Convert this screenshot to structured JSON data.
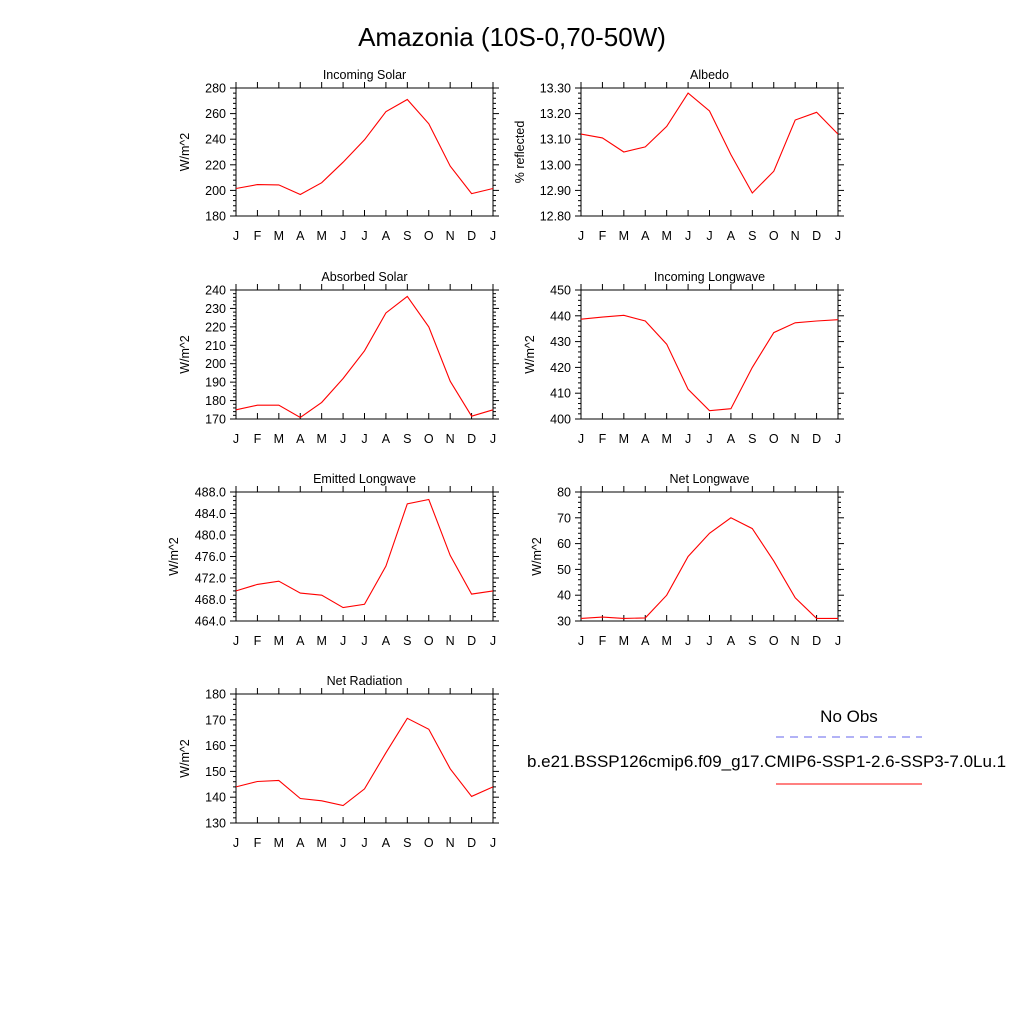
{
  "figure_title": "Amazonia (10S-0,70-50W)",
  "legend": {
    "obs_label": "No Obs",
    "model_label": "b.e21.BSSP126cmip6.f09_g17.CMIP6-SSP1-2.6-SSP3-7.0Lu.1",
    "obs_color": "#6666ee",
    "model_color": "#ff0000"
  },
  "chart_data": [
    {
      "type": "line",
      "title": "Incoming Solar",
      "ylabel": "W/m^2",
      "x": [
        "J",
        "F",
        "M",
        "A",
        "M",
        "J",
        "J",
        "A",
        "S",
        "O",
        "N",
        "D",
        "J"
      ],
      "ylim": [
        180,
        280
      ],
      "yticks": [
        180,
        200,
        220,
        240,
        260,
        280
      ],
      "ytick_labels": [
        "180",
        "200",
        "220",
        "240",
        "260",
        "280"
      ],
      "series": [
        {
          "values": [
            201.5,
            204.5,
            204.3,
            196.8,
            206,
            222,
            239.5,
            261.5,
            271,
            252,
            219,
            197.5,
            201.5
          ]
        }
      ]
    },
    {
      "type": "line",
      "title": "Albedo",
      "ylabel": "% reflected",
      "x": [
        "J",
        "F",
        "M",
        "A",
        "M",
        "J",
        "J",
        "A",
        "S",
        "O",
        "N",
        "D",
        "J"
      ],
      "ylim": [
        12.8,
        13.3
      ],
      "yticks": [
        12.8,
        12.9,
        13.0,
        13.1,
        13.2,
        13.3
      ],
      "ytick_labels": [
        "12.80",
        "12.90",
        "13.00",
        "13.10",
        "13.20",
        "13.30"
      ],
      "series": [
        {
          "values": [
            13.12,
            13.105,
            13.05,
            13.07,
            13.15,
            13.28,
            13.21,
            13.04,
            12.89,
            12.975,
            13.175,
            13.205,
            13.12
          ]
        }
      ]
    },
    {
      "type": "line",
      "title": "Absorbed Solar",
      "ylabel": "W/m^2",
      "x": [
        "J",
        "F",
        "M",
        "A",
        "M",
        "J",
        "J",
        "A",
        "S",
        "O",
        "N",
        "D",
        "J"
      ],
      "ylim": [
        170,
        240
      ],
      "yticks": [
        170,
        180,
        190,
        200,
        210,
        220,
        230,
        240
      ],
      "ytick_labels": [
        "170",
        "180",
        "190",
        "200",
        "210",
        "220",
        "230",
        "240"
      ],
      "series": [
        {
          "values": [
            175,
            177.5,
            177.5,
            170.8,
            179,
            192,
            207,
            227.5,
            236.5,
            220,
            190.5,
            171.5,
            175
          ]
        }
      ]
    },
    {
      "type": "line",
      "title": "Incoming Longwave",
      "ylabel": "W/m^2",
      "x": [
        "J",
        "F",
        "M",
        "A",
        "M",
        "J",
        "J",
        "A",
        "S",
        "O",
        "N",
        "D",
        "J"
      ],
      "ylim": [
        400,
        450
      ],
      "yticks": [
        400,
        410,
        420,
        430,
        440,
        450
      ],
      "ytick_labels": [
        "400",
        "410",
        "420",
        "430",
        "440",
        "450"
      ],
      "series": [
        {
          "values": [
            438.7,
            439.5,
            440.2,
            438,
            429,
            411.5,
            403.2,
            404,
            420,
            433.5,
            437.3,
            438,
            438.5
          ]
        }
      ]
    },
    {
      "type": "line",
      "title": "Emitted Longwave",
      "ylabel": "W/m^2",
      "x": [
        "J",
        "F",
        "M",
        "A",
        "M",
        "J",
        "J",
        "A",
        "S",
        "O",
        "N",
        "D",
        "J"
      ],
      "ylim": [
        464,
        488
      ],
      "yticks": [
        464,
        468,
        472,
        476,
        480,
        484,
        488
      ],
      "ytick_labels": [
        "464.0",
        "468.0",
        "472.0",
        "476.0",
        "480.0",
        "484.0",
        "488.0"
      ],
      "series": [
        {
          "values": [
            469.6,
            470.8,
            471.4,
            469.2,
            468.8,
            466.5,
            467.1,
            474.2,
            485.8,
            486.6,
            476.2,
            469,
            469.6
          ]
        }
      ]
    },
    {
      "type": "line",
      "title": "Net Longwave",
      "ylabel": "W/m^2",
      "x": [
        "J",
        "F",
        "M",
        "A",
        "M",
        "J",
        "J",
        "A",
        "S",
        "O",
        "N",
        "D",
        "J"
      ],
      "ylim": [
        30,
        80
      ],
      "yticks": [
        30,
        40,
        50,
        60,
        70,
        80
      ],
      "ytick_labels": [
        "30",
        "40",
        "50",
        "60",
        "70",
        "80"
      ],
      "series": [
        {
          "values": [
            31,
            31.5,
            31,
            31.2,
            40,
            55,
            64,
            70,
            65.8,
            53.2,
            39,
            31,
            31
          ]
        }
      ]
    },
    {
      "type": "line",
      "title": "Net Radiation",
      "ylabel": "W/m^2",
      "x": [
        "J",
        "F",
        "M",
        "A",
        "M",
        "J",
        "J",
        "A",
        "S",
        "O",
        "N",
        "D",
        "J"
      ],
      "ylim": [
        130,
        180
      ],
      "yticks": [
        130,
        140,
        150,
        160,
        170,
        180
      ],
      "ytick_labels": [
        "130",
        "140",
        "150",
        "160",
        "170",
        "180"
      ],
      "series": [
        {
          "values": [
            144,
            146.1,
            146.5,
            139.5,
            138.6,
            136.8,
            143.2,
            157.2,
            170.6,
            166.3,
            151,
            140.3,
            144
          ]
        }
      ]
    }
  ]
}
